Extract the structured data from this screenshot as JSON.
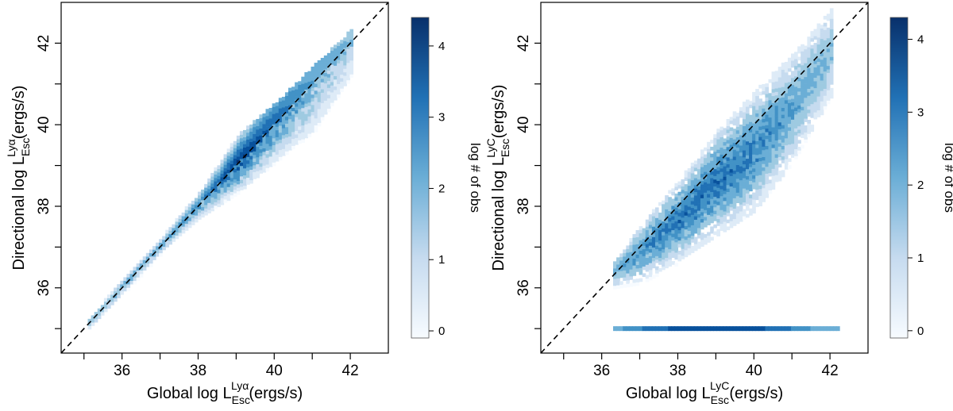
{
  "colors": {
    "cmap_low": "#ffffff",
    "cmap_mid": "#6aaed6",
    "cmap_high": "#08306b",
    "diagonal": "#000000",
    "axes": "#000000"
  },
  "chart_data": [
    {
      "type": "heatmap",
      "name": "lya-panel",
      "xlabel": {
        "pre": "Global log L",
        "sup": "Lyα",
        "sub": "Esc",
        "post": "(ergs/s)"
      },
      "ylabel": {
        "pre": "Directional log L",
        "sup": "Lyα",
        "sub": "Esc",
        "post": "(ergs/s)"
      },
      "xlim": [
        34.4,
        43.0
      ],
      "ylim": [
        34.4,
        43.0
      ],
      "x_ticks": [
        36,
        38,
        40,
        42
      ],
      "x_tick_labels": [
        "36",
        "38",
        "40",
        "42"
      ],
      "y_ticks": [
        36,
        38,
        40,
        42
      ],
      "y_tick_labels": [
        "36",
        "38",
        "40",
        "42"
      ],
      "x_minor_ticks": [
        35,
        37,
        39,
        41
      ],
      "y_minor_ticks": [
        35,
        37,
        39,
        41
      ],
      "diagonal": "y = x (dashed)",
      "grid": false,
      "colorbar": {
        "label": "log # of obs",
        "range": [
          -0.1,
          4.4
        ],
        "ticks": [
          0,
          1,
          2,
          3,
          4
        ],
        "tick_labels": [
          "0",
          "1",
          "2",
          "3",
          "4"
        ]
      },
      "density_description": {
        "core_ridge": [
          {
            "x": 35.1,
            "y_low": 34.9,
            "y_high": 35.2,
            "peak_log_count": 2.2
          },
          {
            "x": 36.0,
            "y_low": 35.8,
            "y_high": 36.2,
            "peak_log_count": 2.3
          },
          {
            "x": 37.0,
            "y_low": 36.8,
            "y_high": 37.2,
            "peak_log_count": 2.5
          },
          {
            "x": 38.0,
            "y_low": 37.6,
            "y_high": 38.3,
            "peak_log_count": 3.0
          },
          {
            "x": 39.0,
            "y_low": 38.2,
            "y_high": 39.7,
            "peak_log_count": 4.3
          },
          {
            "x": 40.0,
            "y_low": 38.5,
            "y_high": 40.5,
            "peak_log_count": 3.5
          },
          {
            "x": 41.0,
            "y_low": 38.8,
            "y_high": 41.4,
            "peak_log_count": 2.5
          },
          {
            "x": 42.0,
            "y_low": 40.5,
            "y_high": 42.3,
            "peak_log_count": 2.0
          }
        ]
      }
    },
    {
      "type": "heatmap",
      "name": "lyc-panel",
      "xlabel": {
        "pre": "Global log L",
        "sup": "LyC",
        "sub": "Esc",
        "post": "(ergs/s)"
      },
      "ylabel": {
        "pre": "Directional log L",
        "sup": "LyC",
        "sub": "Esc",
        "post": "(ergs/s)"
      },
      "xlim": [
        34.4,
        43.0
      ],
      "ylim": [
        34.4,
        43.0
      ],
      "x_ticks": [
        36,
        38,
        40,
        42
      ],
      "x_tick_labels": [
        "36",
        "38",
        "40",
        "42"
      ],
      "y_ticks": [
        36,
        38,
        40,
        42
      ],
      "y_tick_labels": [
        "36",
        "38",
        "40",
        "42"
      ],
      "x_minor_ticks": [
        35,
        37,
        39,
        41
      ],
      "y_minor_ticks": [
        35,
        37,
        39,
        41
      ],
      "diagonal": "y = x (dashed)",
      "grid": false,
      "colorbar": {
        "label": "log # of obs",
        "range": [
          -0.1,
          4.3
        ],
        "ticks": [
          0,
          1,
          2,
          3,
          4
        ],
        "tick_labels": [
          "0",
          "1",
          "2",
          "3",
          "4"
        ]
      },
      "density_description": {
        "core_ridge": [
          {
            "x": 36.3,
            "y_low": 35.8,
            "y_high": 36.6,
            "peak_log_count": 2.3
          },
          {
            "x": 37.0,
            "y_low": 35.9,
            "y_high": 37.5,
            "peak_log_count": 2.8
          },
          {
            "x": 38.0,
            "y_low": 36.4,
            "y_high": 38.6,
            "peak_log_count": 3.3
          },
          {
            "x": 39.0,
            "y_low": 37.0,
            "y_high": 39.8,
            "peak_log_count": 3.4
          },
          {
            "x": 40.0,
            "y_low": 37.6,
            "y_high": 40.8,
            "peak_log_count": 3.1
          },
          {
            "x": 41.0,
            "y_low": 38.8,
            "y_high": 41.7,
            "peak_log_count": 2.6
          },
          {
            "x": 42.0,
            "y_low": 40.4,
            "y_high": 42.8,
            "peak_log_count": 2.0
          }
        ],
        "floor_row": {
          "y": 35.0,
          "x_range": [
            36.3,
            42.2
          ],
          "peak_log_count": 4.0
        }
      }
    }
  ]
}
